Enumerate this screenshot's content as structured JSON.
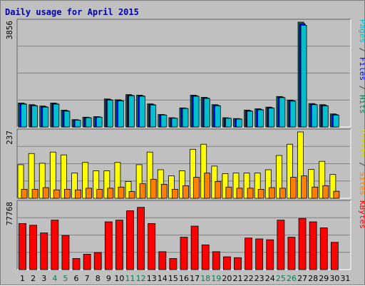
{
  "chart_data": {
    "type": "bar",
    "title": "Daily usage for April 2015",
    "title_color": "#0000aa",
    "categories": [
      "1",
      "2",
      "3",
      "4",
      "5",
      "6",
      "7",
      "8",
      "9",
      "10",
      "11",
      "12",
      "13",
      "14",
      "15",
      "16",
      "17",
      "18",
      "19",
      "20",
      "21",
      "22",
      "23",
      "24",
      "25",
      "26",
      "27",
      "28",
      "29",
      "30",
      "31"
    ],
    "weekend_color": "#00805a",
    "weekday_color": "#000000",
    "weekend_days": [
      "4",
      "5",
      "11",
      "12",
      "18",
      "19",
      "25",
      "26"
    ],
    "panels": [
      {
        "id": "pages-files-hits",
        "ymax_label": "3856",
        "ymax": 3856,
        "right_label": [
          {
            "text": "Pages",
            "color": "#00c0d0"
          },
          {
            "text": " / ",
            "color": "#404040"
          },
          {
            "text": "Files",
            "color": "#0000ff"
          },
          {
            "text": " / ",
            "color": "#404040"
          },
          {
            "text": "Hits",
            "color": "#00805a"
          }
        ],
        "series": [
          {
            "name": "Hits",
            "color": "#00805a",
            "values": [
              880,
              820,
              770,
              880,
              620,
              270,
              360,
              380,
              1030,
              1000,
              1190,
              1170,
              850,
              460,
              340,
              700,
              1170,
              1090,
              820,
              340,
              310,
              620,
              670,
              730,
              1120,
              990,
              3856,
              860,
              820,
              480,
              0
            ]
          },
          {
            "name": "Files",
            "color": "#0000ff",
            "values": [
              860,
              800,
              750,
              860,
              600,
              260,
              350,
              370,
              1010,
              980,
              1170,
              1150,
              830,
              450,
              330,
              690,
              1150,
              1070,
              800,
              330,
              300,
              600,
              650,
              710,
              1100,
              970,
              3800,
              840,
              800,
              460,
              0
            ]
          },
          {
            "name": "Pages",
            "color": "#00c0d0",
            "values": [
              840,
              780,
              730,
              840,
              580,
              250,
              340,
              360,
              990,
              960,
              1150,
              1130,
              810,
              440,
              320,
              680,
              1130,
              1050,
              780,
              320,
              290,
              580,
              630,
              690,
              1080,
              950,
              3740,
              820,
              780,
              440,
              0
            ]
          }
        ]
      },
      {
        "id": "visits-sites",
        "ymax_label": "237",
        "ymax": 237,
        "right_label": [
          {
            "text": "Visits",
            "color": "#d4d400"
          },
          {
            "text": " / ",
            "color": "#404040"
          },
          {
            "text": "Sites",
            "color": "#ff8000"
          }
        ],
        "series": [
          {
            "name": "Visits",
            "color": "#ffff00",
            "values": [
              120,
              160,
              125,
              165,
              155,
              90,
              128,
              98,
              98,
              128,
              60,
              120,
              165,
              102,
              80,
              98,
              175,
              193,
              115,
              88,
              90,
              90,
              90,
              102,
              153,
              193,
              237,
              103,
              132,
              85,
              0
            ]
          },
          {
            "name": "Sites",
            "color": "#ff8000",
            "values": [
              32,
              32,
              38,
              30,
              32,
              30,
              36,
              32,
              36,
              40,
              24,
              52,
              68,
              50,
              32,
              45,
              75,
              90,
              60,
              40,
              36,
              36,
              32,
              38,
              36,
              75,
              80,
              40,
              45,
              25,
              0
            ]
          }
        ]
      },
      {
        "id": "kbytes",
        "ymax_label": "77768",
        "ymax": 77768,
        "right_label": [
          {
            "text": "KBytes",
            "color": "#ff0000"
          }
        ],
        "series": [
          {
            "name": "KBytes",
            "color": "#ff0000",
            "values": [
              54000,
              52000,
              43000,
              58000,
              40000,
              13000,
              18000,
              20000,
              56000,
              58000,
              69000,
              73000,
              54000,
              21000,
              13000,
              38000,
              51000,
              29000,
              21000,
              15000,
              14000,
              37000,
              36000,
              35000,
              58000,
              38000,
              60000,
              56000,
              49000,
              32000,
              0
            ]
          }
        ]
      }
    ]
  }
}
